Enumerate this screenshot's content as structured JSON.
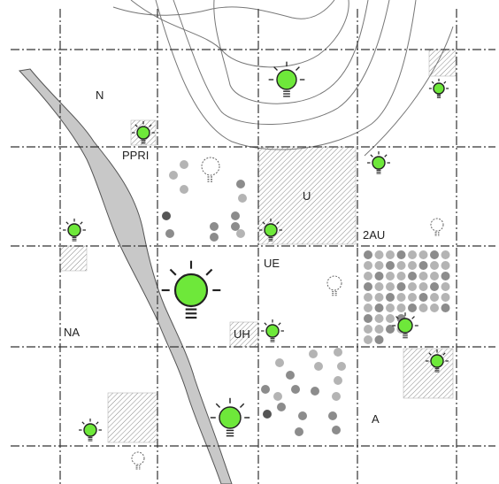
{
  "map": {
    "zones": {
      "n": "N",
      "ppri": "PPRI",
      "u": "U",
      "au2": "2AU",
      "ue": "UE",
      "na": "NA",
      "uh": "UH",
      "a": "A"
    },
    "colors": {
      "river": "#c8c8c8",
      "bulb_on": "#6ee83a",
      "bulb_outline": "#222222",
      "grid": "#333333",
      "hatch": "#777777",
      "dot_light": "#b4b4b4",
      "dot_mid": "#8c8c8c",
      "dot_dark": "#555555"
    },
    "icons": {
      "lit_bulb": "lightbulb-on-icon",
      "unlit_bulb": "lightbulb-off-icon"
    }
  }
}
